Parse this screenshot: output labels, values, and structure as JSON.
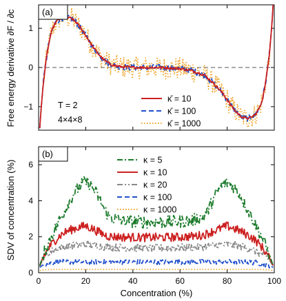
{
  "chart_data": [
    {
      "type": "line",
      "panel_label": "(a)",
      "ylabel": "Free energy derivative  ∂F / ∂c",
      "xlabel": "",
      "xlim": [
        0,
        100
      ],
      "ylim": [
        -1.6,
        1.6
      ],
      "xticks": [
        0,
        20,
        40,
        60,
        80,
        100
      ],
      "xtick_labels": [
        "",
        "",
        "",
        "",
        "",
        ""
      ],
      "yticks": [
        -1,
        0,
        1
      ],
      "ytick_labels": [
        "−1",
        "0",
        "1"
      ],
      "reference_line": {
        "y": 0,
        "style": "dashed",
        "color": "#555555"
      },
      "annotations": [
        "T = 2",
        "4×4×8"
      ],
      "legend_position": "lower-right",
      "series": [
        {
          "name": "κ̄ = 10",
          "color": "#cc1f1f",
          "style": "solid",
          "noise": 0.01,
          "x": [
            0.5,
            1,
            2,
            3,
            4,
            5,
            6,
            7,
            8,
            10,
            12,
            14,
            16,
            18,
            20,
            22,
            24,
            26,
            28,
            30,
            32,
            35,
            40,
            45,
            50,
            55,
            60,
            65,
            70,
            72,
            75,
            78,
            80,
            82,
            84,
            86,
            88,
            90,
            92,
            94,
            95,
            96,
            97,
            98,
            99,
            99.5
          ],
          "y": [
            -1.55,
            -1.1,
            -0.4,
            0.1,
            0.5,
            0.8,
            1.0,
            1.12,
            1.2,
            1.27,
            1.28,
            1.25,
            1.15,
            1.0,
            0.82,
            0.62,
            0.45,
            0.3,
            0.18,
            0.1,
            0.05,
            0.02,
            0.0,
            0.0,
            0.0,
            -0.01,
            -0.03,
            -0.08,
            -0.18,
            -0.28,
            -0.45,
            -0.65,
            -0.82,
            -1.0,
            -1.15,
            -1.25,
            -1.3,
            -1.28,
            -1.2,
            -1.0,
            -0.8,
            -0.5,
            -0.1,
            0.4,
            1.1,
            1.6
          ]
        },
        {
          "name": "κ̄ = 100",
          "color": "#1f4fcc",
          "style": "dashed",
          "noise": 0.025,
          "x": [
            0.5,
            1,
            2,
            3,
            4,
            5,
            6,
            7,
            8,
            10,
            12,
            14,
            16,
            18,
            20,
            22,
            24,
            26,
            28,
            30,
            32,
            35,
            40,
            45,
            50,
            55,
            60,
            65,
            70,
            72,
            75,
            78,
            80,
            82,
            84,
            86,
            88,
            90,
            92,
            94,
            95,
            96,
            97,
            98,
            99,
            99.5
          ],
          "y": [
            -1.55,
            -1.1,
            -0.4,
            0.1,
            0.5,
            0.8,
            1.0,
            1.12,
            1.2,
            1.27,
            1.28,
            1.25,
            1.15,
            1.0,
            0.82,
            0.62,
            0.45,
            0.3,
            0.18,
            0.1,
            0.05,
            0.02,
            0.0,
            0.0,
            0.0,
            -0.01,
            -0.03,
            -0.08,
            -0.18,
            -0.28,
            -0.45,
            -0.65,
            -0.82,
            -1.0,
            -1.15,
            -1.25,
            -1.3,
            -1.28,
            -1.2,
            -1.0,
            -0.8,
            -0.5,
            -0.1,
            0.4,
            1.1,
            1.6
          ]
        },
        {
          "name": "κ̄ = 1000",
          "color": "#f0a020",
          "style": "dotted",
          "noise": 0.09,
          "x": [
            0.5,
            1,
            2,
            3,
            4,
            5,
            6,
            7,
            8,
            10,
            12,
            14,
            16,
            18,
            20,
            22,
            24,
            26,
            28,
            30,
            32,
            35,
            40,
            45,
            50,
            55,
            60,
            65,
            70,
            72,
            75,
            78,
            80,
            82,
            84,
            86,
            88,
            90,
            92,
            94,
            95,
            96,
            97,
            98,
            99,
            99.5
          ],
          "y": [
            -1.55,
            -1.1,
            -0.4,
            0.1,
            0.5,
            0.8,
            1.0,
            1.12,
            1.2,
            1.27,
            1.28,
            1.25,
            1.15,
            1.0,
            0.82,
            0.62,
            0.45,
            0.3,
            0.18,
            0.1,
            0.05,
            0.02,
            0.0,
            0.0,
            0.0,
            -0.01,
            -0.03,
            -0.08,
            -0.18,
            -0.28,
            -0.45,
            -0.65,
            -0.82,
            -1.0,
            -1.15,
            -1.25,
            -1.3,
            -1.28,
            -1.2,
            -1.0,
            -0.8,
            -0.5,
            -0.1,
            0.4,
            1.1,
            1.6
          ]
        }
      ]
    },
    {
      "type": "line",
      "panel_label": "(b)",
      "ylabel": "SDV of concentration (%)",
      "xlabel": "Concentration (%)",
      "xlim": [
        0,
        100
      ],
      "ylim": [
        0,
        7
      ],
      "xticks": [
        0,
        20,
        40,
        60,
        80,
        100
      ],
      "xtick_labels": [
        "0",
        "20",
        "40",
        "60",
        "80",
        "100"
      ],
      "yticks": [
        0,
        2,
        4,
        6
      ],
      "ytick_labels": [
        "0",
        "2",
        "4",
        "6"
      ],
      "legend_position": "top-center",
      "series": [
        {
          "name": "κ = 5",
          "color": "#1a7a2a",
          "style": "dashdot",
          "noise": 0.05,
          "x": [
            0.5,
            2,
            5,
            8,
            10,
            12,
            15,
            18,
            20,
            22,
            25,
            28,
            30,
            35,
            40,
            45,
            50,
            55,
            60,
            65,
            70,
            72,
            75,
            78,
            80,
            82,
            85,
            88,
            90,
            92,
            95,
            98,
            99.5
          ],
          "y": [
            0.4,
            1.0,
            1.9,
            2.7,
            3.2,
            3.7,
            4.4,
            4.9,
            5.05,
            4.9,
            4.3,
            3.5,
            3.1,
            2.9,
            2.85,
            2.82,
            2.8,
            2.82,
            2.85,
            2.9,
            3.1,
            3.5,
            4.3,
            4.9,
            5.0,
            4.9,
            4.4,
            3.7,
            3.2,
            2.7,
            1.9,
            1.0,
            0.4
          ]
        },
        {
          "name": "κ = 10",
          "color": "#cc1f1f",
          "style": "solid",
          "noise": 0.035,
          "x": [
            0.5,
            2,
            5,
            8,
            10,
            12,
            15,
            18,
            20,
            22,
            25,
            28,
            30,
            35,
            40,
            45,
            50,
            55,
            60,
            65,
            70,
            72,
            75,
            78,
            80,
            82,
            85,
            88,
            90,
            92,
            95,
            98,
            99.5
          ],
          "y": [
            0.4,
            0.9,
            1.5,
            1.95,
            2.15,
            2.3,
            2.45,
            2.55,
            2.6,
            2.5,
            2.3,
            2.1,
            2.02,
            1.98,
            1.97,
            1.96,
            1.96,
            1.97,
            1.98,
            2.02,
            2.1,
            2.2,
            2.35,
            2.5,
            2.6,
            2.5,
            2.35,
            2.15,
            2.0,
            1.8,
            1.4,
            0.8,
            0.4
          ]
        },
        {
          "name": "κ = 20",
          "color": "#888888",
          "style": "dashdotdot",
          "noise": 0.03,
          "x": [
            0.5,
            2,
            5,
            8,
            10,
            12,
            15,
            18,
            20,
            22,
            25,
            28,
            30,
            35,
            40,
            45,
            50,
            55,
            60,
            65,
            70,
            72,
            75,
            78,
            80,
            82,
            85,
            88,
            90,
            92,
            95,
            98,
            99.5
          ],
          "y": [
            0.35,
            0.8,
            1.15,
            1.35,
            1.42,
            1.47,
            1.52,
            1.56,
            1.58,
            1.55,
            1.5,
            1.45,
            1.42,
            1.4,
            1.38,
            1.37,
            1.37,
            1.38,
            1.4,
            1.42,
            1.45,
            1.48,
            1.52,
            1.56,
            1.58,
            1.55,
            1.48,
            1.4,
            1.32,
            1.2,
            1.0,
            0.7,
            0.35
          ]
        },
        {
          "name": "κ = 100",
          "color": "#1f4fcc",
          "style": "dashed",
          "noise": 0.02,
          "x": [
            0.5,
            2,
            5,
            8,
            10,
            15,
            20,
            30,
            40,
            50,
            60,
            70,
            80,
            85,
            90,
            92,
            95,
            98,
            99.5
          ],
          "y": [
            0.3,
            0.45,
            0.55,
            0.6,
            0.6,
            0.6,
            0.6,
            0.6,
            0.6,
            0.6,
            0.6,
            0.6,
            0.6,
            0.6,
            0.58,
            0.56,
            0.5,
            0.4,
            0.3
          ]
        },
        {
          "name": "κ = 1000",
          "color": "#f0a020",
          "style": "dotted",
          "noise": 0.0,
          "x": [
            0.5,
            2,
            5,
            10,
            20,
            30,
            40,
            50,
            60,
            70,
            80,
            90,
            95,
            98,
            99.5
          ],
          "y": [
            0.12,
            0.16,
            0.18,
            0.19,
            0.19,
            0.19,
            0.19,
            0.19,
            0.19,
            0.19,
            0.19,
            0.19,
            0.18,
            0.16,
            0.12
          ]
        }
      ]
    }
  ]
}
